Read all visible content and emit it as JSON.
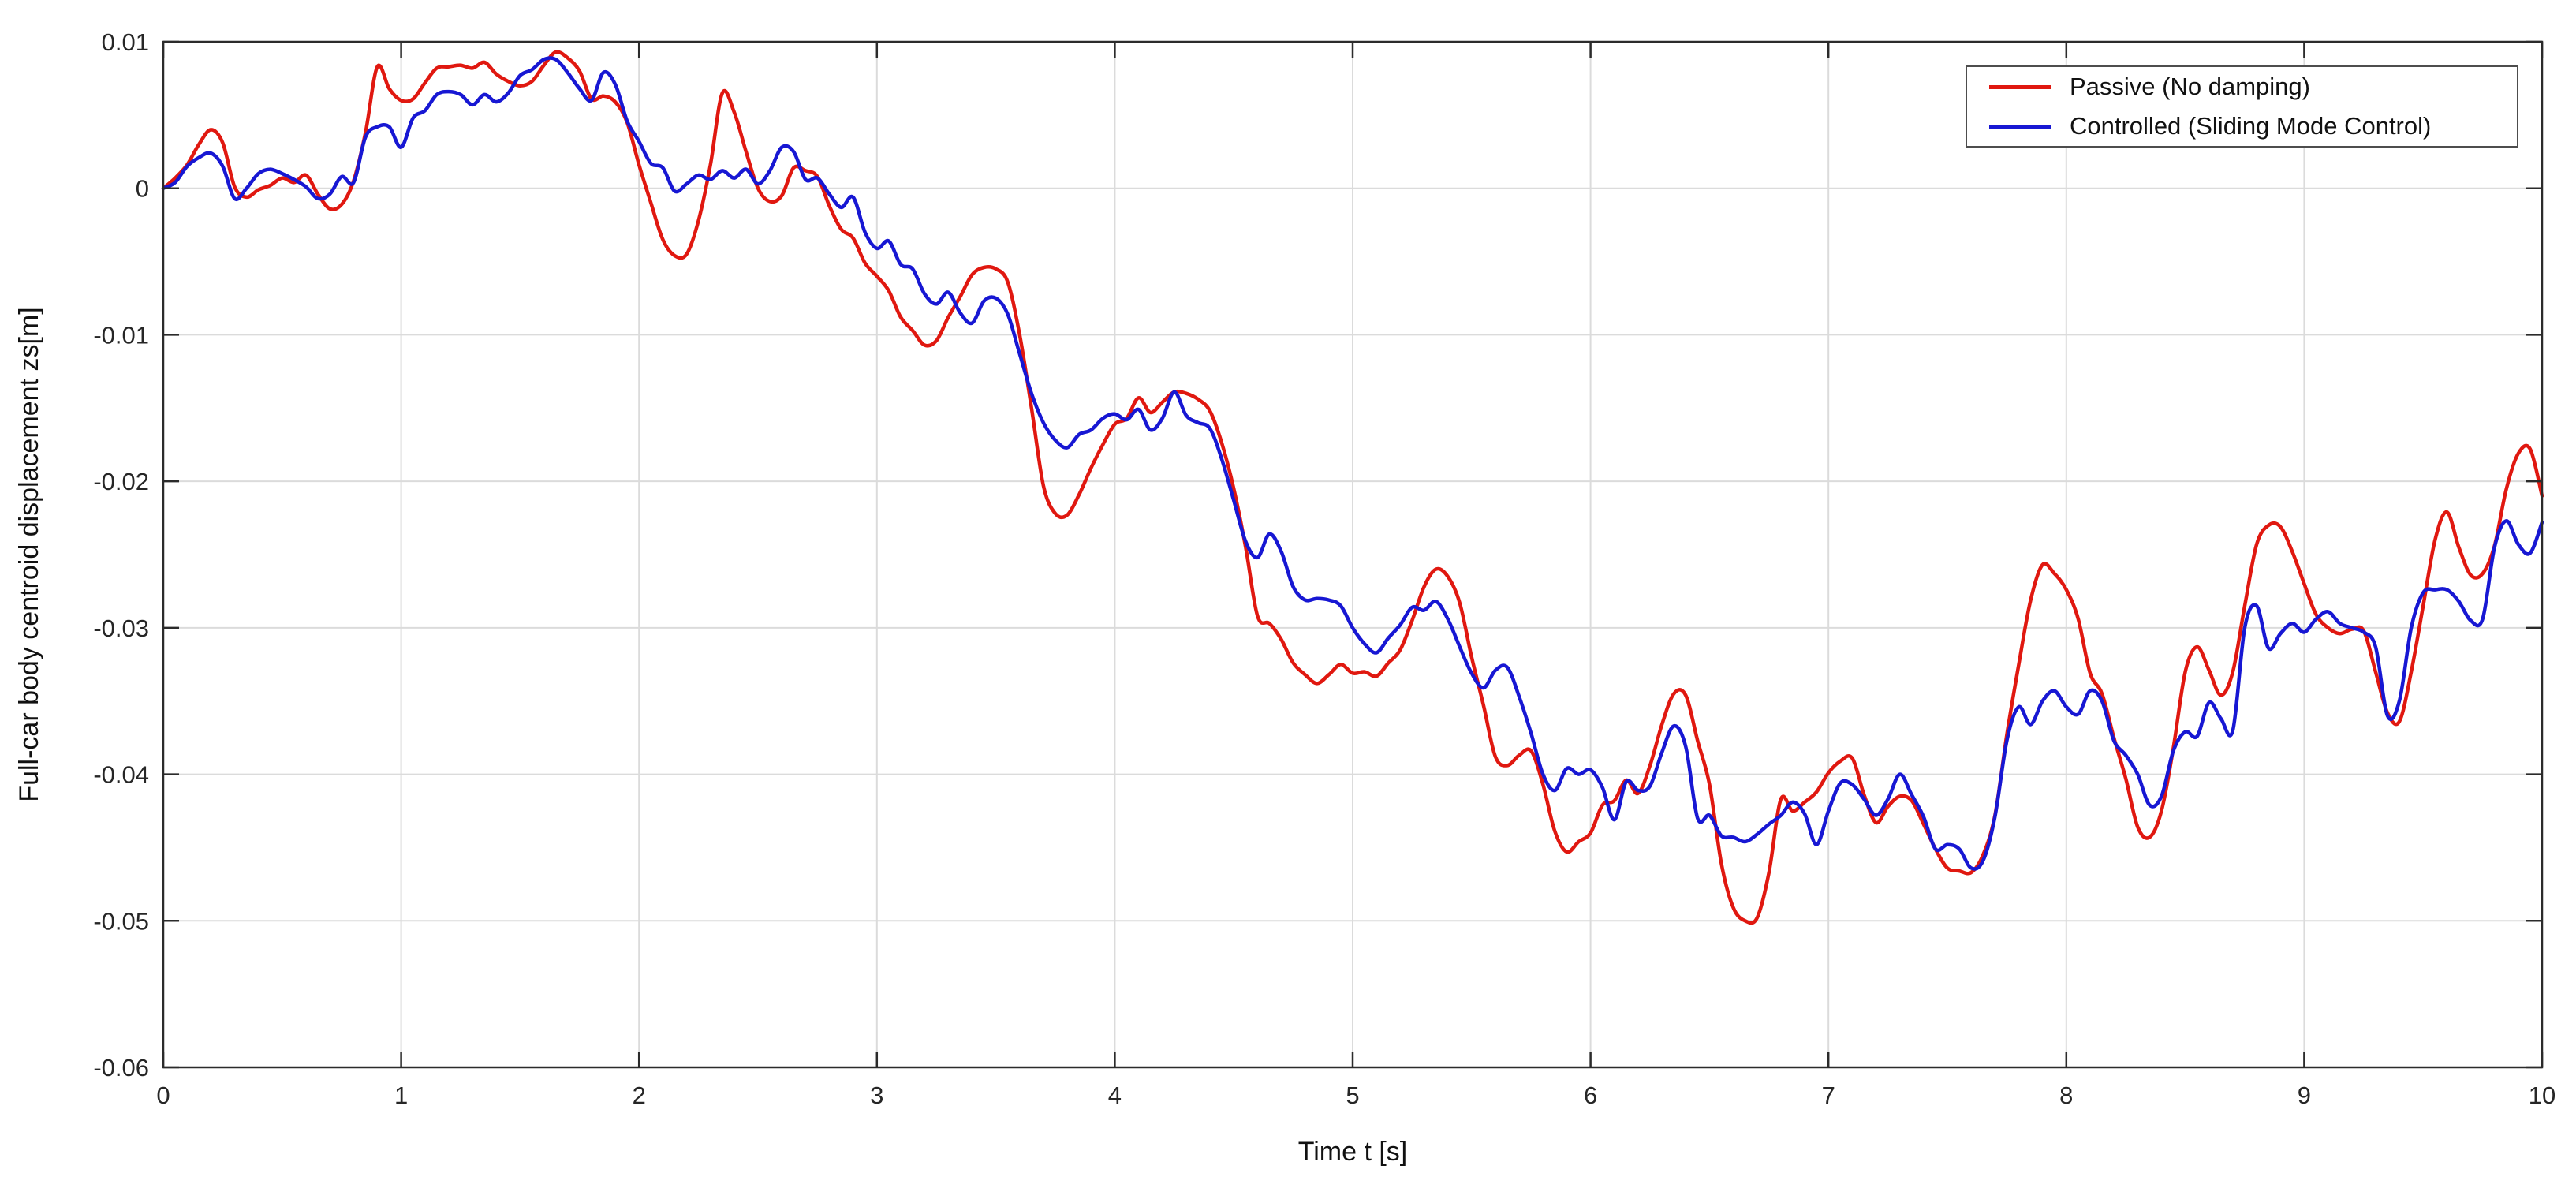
{
  "figure": {
    "xlabel": "Time t [s]",
    "ylabel": "Full-car body centroid displacement zs[m]"
  },
  "chart_data": {
    "type": "line",
    "title": "",
    "xlabel": "Time t [s]",
    "ylabel": "Full-car body centroid displacement zs[m]",
    "xlim": [
      0,
      10
    ],
    "ylim": [
      -0.06,
      0.01
    ],
    "xticks": [
      0,
      1,
      2,
      3,
      4,
      5,
      6,
      7,
      8,
      9,
      10
    ],
    "xtick_labels": [
      "0",
      "1",
      "2",
      "3",
      "4",
      "5",
      "6",
      "7",
      "8",
      "9",
      "10"
    ],
    "yticks": [
      0.01,
      0,
      -0.01,
      -0.02,
      -0.03,
      -0.04,
      -0.05,
      -0.06
    ],
    "ytick_labels": [
      "0.01",
      "0",
      "-0.01",
      "-0.02",
      "-0.03",
      "-0.04",
      "-0.05",
      "-0.06"
    ],
    "grid": true,
    "legend_position": "top-right",
    "grid_color": "#dbdbdb",
    "axis_color": "#2b2b2b",
    "x_start": 0,
    "x_step": 0.05,
    "series": [
      {
        "name": "Passive (No damping)",
        "color": "#e01810",
        "values": [
          0.0,
          0.0007,
          0.0016,
          0.003,
          0.004,
          0.0031,
          0.0001,
          -0.0006,
          -0.0001,
          0.0002,
          0.0007,
          0.0004,
          0.0009,
          -0.0004,
          -0.0014,
          -0.0011,
          0.0005,
          0.0038,
          0.0083,
          0.0068,
          0.006,
          0.0061,
          0.0072,
          0.0082,
          0.0083,
          0.0084,
          0.0082,
          0.0086,
          0.0078,
          0.0073,
          0.007,
          0.0073,
          0.0084,
          0.0093,
          0.0089,
          0.008,
          0.0061,
          0.0063,
          0.0059,
          0.0045,
          0.0016,
          -0.001,
          -0.0035,
          -0.0046,
          -0.0045,
          -0.0022,
          0.0016,
          0.0065,
          0.0052,
          0.0025,
          0.0,
          -0.0009,
          -0.0005,
          0.0014,
          0.0012,
          0.0008,
          -0.0012,
          -0.0028,
          -0.0034,
          -0.0051,
          -0.006,
          -0.007,
          -0.0088,
          -0.0097,
          -0.0107,
          -0.0104,
          -0.0088,
          -0.0074,
          -0.0059,
          -0.0054,
          -0.0055,
          -0.0064,
          -0.01,
          -0.015,
          -0.0203,
          -0.0222,
          -0.0223,
          -0.0209,
          -0.0191,
          -0.0175,
          -0.0161,
          -0.0157,
          -0.0143,
          -0.0153,
          -0.0146,
          -0.0139,
          -0.014,
          -0.0144,
          -0.0152,
          -0.0174,
          -0.0205,
          -0.0245,
          -0.0292,
          -0.0297,
          -0.0308,
          -0.0324,
          -0.0332,
          -0.0338,
          -0.0332,
          -0.0325,
          -0.0331,
          -0.033,
          -0.0333,
          -0.0324,
          -0.0315,
          -0.0295,
          -0.0272,
          -0.026,
          -0.0265,
          -0.0283,
          -0.032,
          -0.0353,
          -0.0388,
          -0.0394,
          -0.0387,
          -0.0384,
          -0.0407,
          -0.0439,
          -0.0453,
          -0.0446,
          -0.044,
          -0.0421,
          -0.0418,
          -0.0404,
          -0.0413,
          -0.0394,
          -0.0366,
          -0.0345,
          -0.0346,
          -0.0377,
          -0.0407,
          -0.0461,
          -0.0491,
          -0.05,
          -0.0498,
          -0.0467,
          -0.0417,
          -0.0425,
          -0.0419,
          -0.0412,
          -0.0399,
          -0.0391,
          -0.0389,
          -0.0414,
          -0.0433,
          -0.0422,
          -0.0415,
          -0.0418,
          -0.0434,
          -0.0451,
          -0.0464,
          -0.0466,
          -0.0467,
          -0.0455,
          -0.0428,
          -0.0373,
          -0.0325,
          -0.0281,
          -0.0257,
          -0.0263,
          -0.0274,
          -0.0294,
          -0.0331,
          -0.0345,
          -0.0375,
          -0.0403,
          -0.0436,
          -0.0443,
          -0.0425,
          -0.0382,
          -0.033,
          -0.0313,
          -0.0329,
          -0.0346,
          -0.033,
          -0.0285,
          -0.0243,
          -0.023,
          -0.0231,
          -0.0248,
          -0.027,
          -0.0291,
          -0.03,
          -0.0304,
          -0.0301,
          -0.0302,
          -0.033,
          -0.0358,
          -0.0364,
          -0.033,
          -0.0285,
          -0.024,
          -0.0221,
          -0.0245,
          -0.0264,
          -0.0263,
          -0.0244,
          -0.0205,
          -0.0181,
          -0.0178,
          -0.021
        ]
      },
      {
        "name": "Controlled (Sliding Mode Control)",
        "color": "#1717d3",
        "values": [
          0.0,
          0.0004,
          0.0015,
          0.0021,
          0.0024,
          0.0015,
          -0.0007,
          0.0,
          0.001,
          0.0013,
          0.001,
          0.0006,
          0.0001,
          -0.0007,
          -0.0004,
          0.0008,
          0.0004,
          0.0035,
          0.0042,
          0.0042,
          0.0028,
          0.0048,
          0.0053,
          0.0064,
          0.0066,
          0.0064,
          0.0057,
          0.0064,
          0.0059,
          0.0065,
          0.0077,
          0.0081,
          0.0088,
          0.0088,
          0.0079,
          0.0068,
          0.006,
          0.0079,
          0.0071,
          0.0046,
          0.0032,
          0.0017,
          0.0014,
          -0.0002,
          0.0003,
          0.0009,
          0.0006,
          0.0012,
          0.0007,
          0.0013,
          0.0003,
          0.0012,
          0.0028,
          0.0025,
          0.0006,
          0.0007,
          -0.0004,
          -0.0013,
          -0.0006,
          -0.003,
          -0.0041,
          -0.0036,
          -0.0052,
          -0.0055,
          -0.0072,
          -0.0079,
          -0.0071,
          -0.0085,
          -0.0092,
          -0.0077,
          -0.0075,
          -0.0086,
          -0.0113,
          -0.014,
          -0.016,
          -0.0172,
          -0.0177,
          -0.0168,
          -0.0165,
          -0.0157,
          -0.0154,
          -0.0158,
          -0.0151,
          -0.0165,
          -0.0157,
          -0.0139,
          -0.0155,
          -0.016,
          -0.0164,
          -0.0185,
          -0.0213,
          -0.0241,
          -0.0252,
          -0.0236,
          -0.0248,
          -0.0272,
          -0.0281,
          -0.028,
          -0.0281,
          -0.0285,
          -0.03,
          -0.0311,
          -0.0317,
          -0.0307,
          -0.0298,
          -0.0286,
          -0.0288,
          -0.0282,
          -0.0294,
          -0.0313,
          -0.0331,
          -0.0341,
          -0.0329,
          -0.0327,
          -0.0347,
          -0.0372,
          -0.04,
          -0.0411,
          -0.0396,
          -0.04,
          -0.0397,
          -0.0409,
          -0.0431,
          -0.0405,
          -0.0411,
          -0.0408,
          -0.0385,
          -0.0367,
          -0.0381,
          -0.043,
          -0.0428,
          -0.0442,
          -0.0443,
          -0.0446,
          -0.0441,
          -0.0434,
          -0.0428,
          -0.0419,
          -0.0427,
          -0.0448,
          -0.0425,
          -0.0406,
          -0.0407,
          -0.0417,
          -0.0428,
          -0.0417,
          -0.04,
          -0.0414,
          -0.0429,
          -0.0451,
          -0.0448,
          -0.0451,
          -0.0464,
          -0.0459,
          -0.0429,
          -0.0377,
          -0.0354,
          -0.0366,
          -0.035,
          -0.0343,
          -0.0354,
          -0.0359,
          -0.0343,
          -0.035,
          -0.0377,
          -0.0387,
          -0.04,
          -0.0421,
          -0.0415,
          -0.0384,
          -0.0371,
          -0.0374,
          -0.0351,
          -0.0362,
          -0.037,
          -0.03,
          -0.0285,
          -0.0314,
          -0.0304,
          -0.0297,
          -0.0303,
          -0.0294,
          -0.0289,
          -0.0297,
          -0.03,
          -0.0303,
          -0.0313,
          -0.036,
          -0.035,
          -0.03,
          -0.0276,
          -0.0274,
          -0.0274,
          -0.0282,
          -0.0295,
          -0.0294,
          -0.0245,
          -0.0227,
          -0.0243,
          -0.0249,
          -0.0228
        ]
      }
    ]
  }
}
